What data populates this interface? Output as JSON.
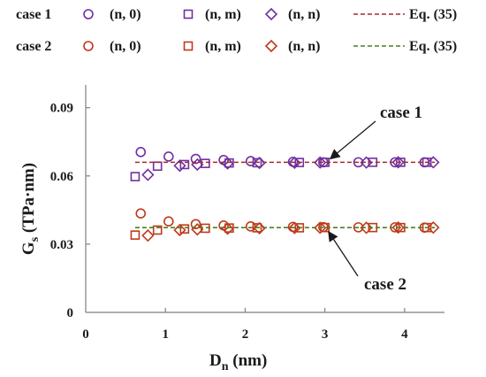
{
  "colors": {
    "case1": "#7030A0",
    "case2": "#C0391B",
    "eq1": "#A52A2A",
    "eq2": "#4F7F1F",
    "axis": "#7f7f7f"
  },
  "legend": {
    "rows": [
      {
        "case_label": "case 1",
        "items": [
          {
            "marker": "circle",
            "label": "(n, 0)",
            "color": "#7030A0"
          },
          {
            "marker": "square",
            "label": "(n, m)",
            "color": "#7030A0"
          },
          {
            "marker": "diamond",
            "label": "(n, n)",
            "color": "#7030A0"
          },
          {
            "marker": "dash",
            "label": "Eq. (35)",
            "color": "#A52A2A"
          }
        ]
      },
      {
        "case_label": "case 2",
        "items": [
          {
            "marker": "circle",
            "label": "(n, 0)",
            "color": "#C0391B"
          },
          {
            "marker": "square",
            "label": "(n, m)",
            "color": "#C0391B"
          },
          {
            "marker": "diamond",
            "label": "(n, n)",
            "color": "#C0391B"
          },
          {
            "marker": "dash",
            "label": "Eq. (35)",
            "color": "#4F7F1F"
          }
        ]
      }
    ]
  },
  "chart_data": {
    "type": "scatter",
    "xlabel_main": "D",
    "xlabel_sub": "n",
    "xlabel_unit": " (nm)",
    "ylabel_main": "G",
    "ylabel_sub": "s",
    "ylabel_unit": " (TPa·nm)",
    "xlim": [
      0,
      4.5
    ],
    "ylim": [
      0,
      0.1
    ],
    "xticks": [
      0,
      1,
      2,
      3,
      4
    ],
    "yticks": [
      0,
      0.03,
      0.06,
      0.09
    ],
    "ytick_labels": [
      "0",
      "0.03",
      "0.06",
      "0.09"
    ],
    "grid": false,
    "annotations": [
      {
        "text": "case 1",
        "arrow_to": [
          2.98,
          0.066
        ]
      },
      {
        "text": "case 2",
        "arrow_to": [
          2.98,
          0.037
        ]
      }
    ],
    "series": [
      {
        "case": 1,
        "marker": "circle",
        "color": "#7030A0",
        "x": [
          0.69,
          1.04,
          1.38,
          1.73,
          2.07,
          2.6,
          2.98,
          3.42,
          3.88,
          4.25
        ],
        "y": [
          0.0705,
          0.0685,
          0.0675,
          0.067,
          0.0665,
          0.0662,
          0.066,
          0.066,
          0.066,
          0.066
        ]
      },
      {
        "case": 1,
        "marker": "square",
        "color": "#7030A0",
        "x": [
          0.62,
          0.9,
          1.24,
          1.5,
          1.8,
          2.15,
          2.68,
          3.0,
          3.6,
          3.95,
          4.28
        ],
        "y": [
          0.0597,
          0.0643,
          0.065,
          0.0655,
          0.0657,
          0.0658,
          0.0659,
          0.066,
          0.066,
          0.066,
          0.066
        ]
      },
      {
        "case": 1,
        "marker": "diamond",
        "color": "#7030A0",
        "x": [
          0.78,
          1.18,
          1.4,
          1.78,
          2.18,
          2.62,
          2.94,
          3.52,
          3.92,
          4.36
        ],
        "y": [
          0.0605,
          0.0645,
          0.065,
          0.0655,
          0.0657,
          0.0658,
          0.0659,
          0.0659,
          0.066,
          0.066
        ]
      },
      {
        "case": 1,
        "marker": "dash",
        "color": "#A52A2A",
        "line": true,
        "x": [
          0.62,
          4.38
        ],
        "y": [
          0.066,
          0.066
        ]
      },
      {
        "case": 2,
        "marker": "circle",
        "color": "#C0391B",
        "x": [
          0.69,
          1.04,
          1.38,
          1.73,
          2.07,
          2.6,
          2.98,
          3.42,
          3.88,
          4.25
        ],
        "y": [
          0.0435,
          0.04,
          0.0388,
          0.0382,
          0.0378,
          0.0376,
          0.0375,
          0.0374,
          0.0374,
          0.0373
        ]
      },
      {
        "case": 2,
        "marker": "square",
        "color": "#C0391B",
        "x": [
          0.62,
          0.9,
          1.24,
          1.5,
          1.8,
          2.15,
          2.68,
          3.0,
          3.6,
          3.95,
          4.28
        ],
        "y": [
          0.034,
          0.0362,
          0.0367,
          0.037,
          0.0371,
          0.0372,
          0.0372,
          0.0373,
          0.0373,
          0.0373,
          0.0373
        ]
      },
      {
        "case": 2,
        "marker": "diamond",
        "color": "#C0391B",
        "x": [
          0.78,
          1.18,
          1.4,
          1.78,
          2.18,
          2.62,
          2.94,
          3.52,
          3.92,
          4.36
        ],
        "y": [
          0.0338,
          0.0362,
          0.0365,
          0.0368,
          0.037,
          0.0371,
          0.0372,
          0.0372,
          0.0373,
          0.0373
        ]
      },
      {
        "case": 2,
        "marker": "dash",
        "color": "#4F7F1F",
        "line": true,
        "x": [
          0.62,
          4.38
        ],
        "y": [
          0.0373,
          0.0373
        ]
      }
    ]
  }
}
